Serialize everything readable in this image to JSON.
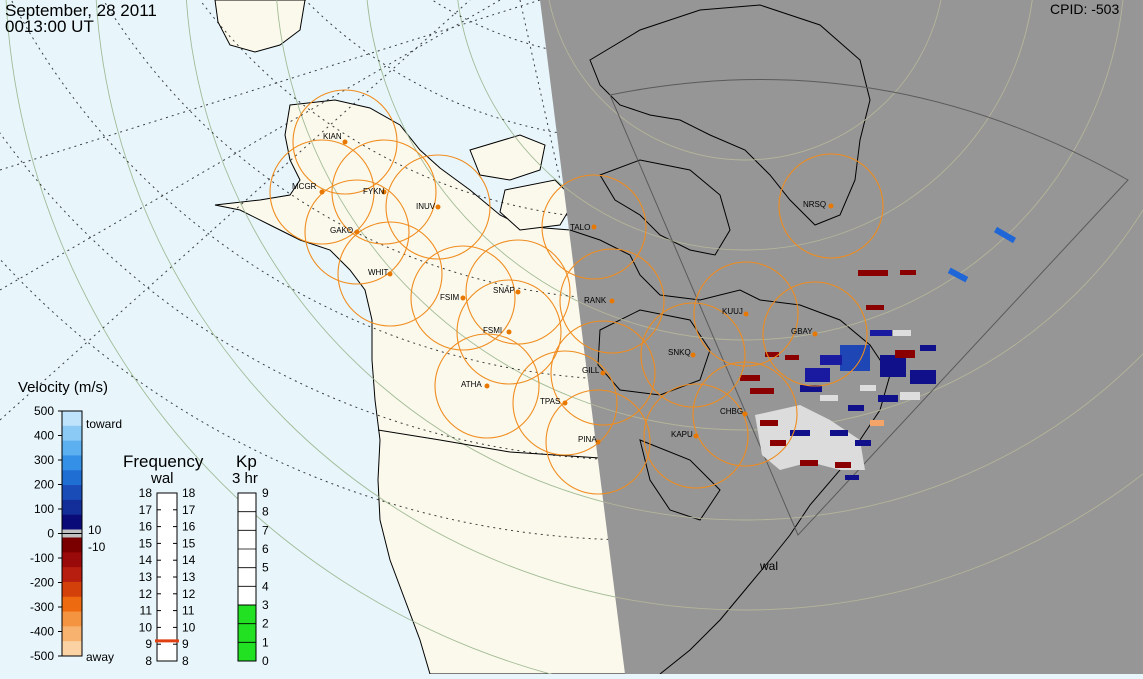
{
  "header": {
    "date": "September, 28 2011",
    "time": "0013:00 UT",
    "cpid": "CPID:  -503"
  },
  "colors": {
    "ocean": "#e8f6fc",
    "land": "#fbf9ec",
    "night": "#969696",
    "station_ring": "#f08c1e",
    "station_dot": "#e87800",
    "kp_fill": "#22e022"
  },
  "stations": [
    {
      "code": "KIAN"
    },
    {
      "code": "MCGR"
    },
    {
      "code": "FYKN"
    },
    {
      "code": "INUV"
    },
    {
      "code": "GAKO"
    },
    {
      "code": "WHIT"
    },
    {
      "code": "FSIM"
    },
    {
      "code": "SNAP"
    },
    {
      "code": "FSMI"
    },
    {
      "code": "ATHA"
    },
    {
      "code": "TPAS"
    },
    {
      "code": "GILL"
    },
    {
      "code": "RANK"
    },
    {
      "code": "TALO"
    },
    {
      "code": "NRSQ"
    },
    {
      "code": "KUUJ"
    },
    {
      "code": "GBAY"
    },
    {
      "code": "SNKQ"
    },
    {
      "code": "CHBG"
    },
    {
      "code": "KAPU"
    },
    {
      "code": "PINA"
    }
  ],
  "radar_label": "wal",
  "velocity_legend": {
    "title": "Velocity (m/s)",
    "toward": "toward",
    "away": "away",
    "ticks": [
      "500",
      "400",
      "300",
      "200",
      "100",
      "0",
      "-100",
      "-200",
      "-300",
      "-400",
      "-500"
    ],
    "gs_labels": [
      "10",
      "-10"
    ]
  },
  "frequency_legend": {
    "title": "Frequency",
    "subtitle": "wal",
    "ticks": [
      "18",
      "17",
      "16",
      "15",
      "14",
      "13",
      "12",
      "11",
      "10",
      "9",
      "8"
    ],
    "current": 9.2
  },
  "kp_legend": {
    "title": "Kp",
    "subtitle": "3 hr",
    "ticks": [
      "9",
      "8",
      "7",
      "6",
      "5",
      "4",
      "3",
      "2",
      "1",
      "0"
    ],
    "value": 3
  }
}
